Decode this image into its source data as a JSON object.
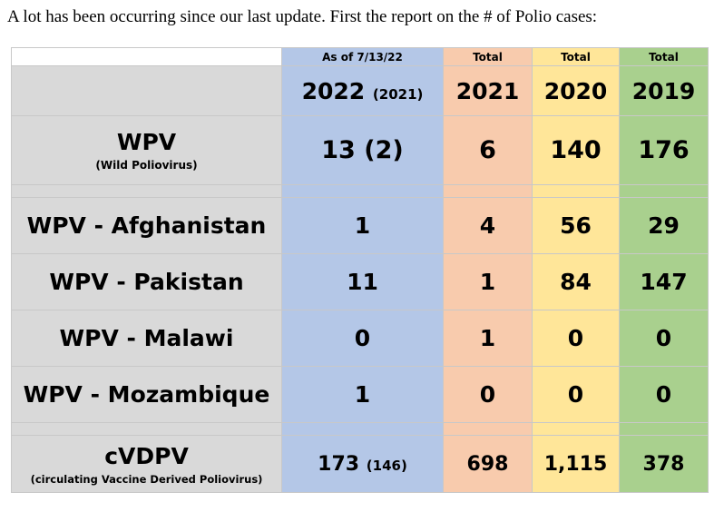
{
  "intro_text": "A lot has been occurring since our last update. First the report on the # of Polio cases:",
  "table": {
    "header_labels": [
      "",
      "As of 7/13/22",
      "Total",
      "Total",
      "Total"
    ],
    "year_row": {
      "y2022_main": "2022",
      "y2022_sub": "(2021)",
      "y2021": "2021",
      "y2020": "2020",
      "y2019": "2019"
    },
    "wpv": {
      "label": "WPV",
      "sublabel": "(Wild Poliovirus)",
      "values": [
        "13 (2)",
        "6",
        "140",
        "176"
      ]
    },
    "countries": [
      {
        "label": "WPV - Afghanistan",
        "values": [
          "1",
          "4",
          "56",
          "29"
        ]
      },
      {
        "label": "WPV - Pakistan",
        "values": [
          "11",
          "1",
          "84",
          "147"
        ]
      },
      {
        "label": "WPV - Malawi",
        "values": [
          "0",
          "1",
          "0",
          "0"
        ]
      },
      {
        "label": "WPV - Mozambique",
        "values": [
          "1",
          "0",
          "0",
          "0"
        ]
      }
    ],
    "cvdpv": {
      "label": "cVDPV",
      "sublabel": "(circulating Vaccine Derived Poliovirus)",
      "value_2022_main": "173",
      "value_2022_sub": "(146)",
      "values": [
        "698",
        "1,115",
        "378"
      ]
    }
  },
  "colors": {
    "label_column": "#d9d9d9",
    "col_2022": "#b4c7e7",
    "col_2021": "#f8cbad",
    "col_2020": "#ffe699",
    "col_2019": "#a9d08e"
  }
}
